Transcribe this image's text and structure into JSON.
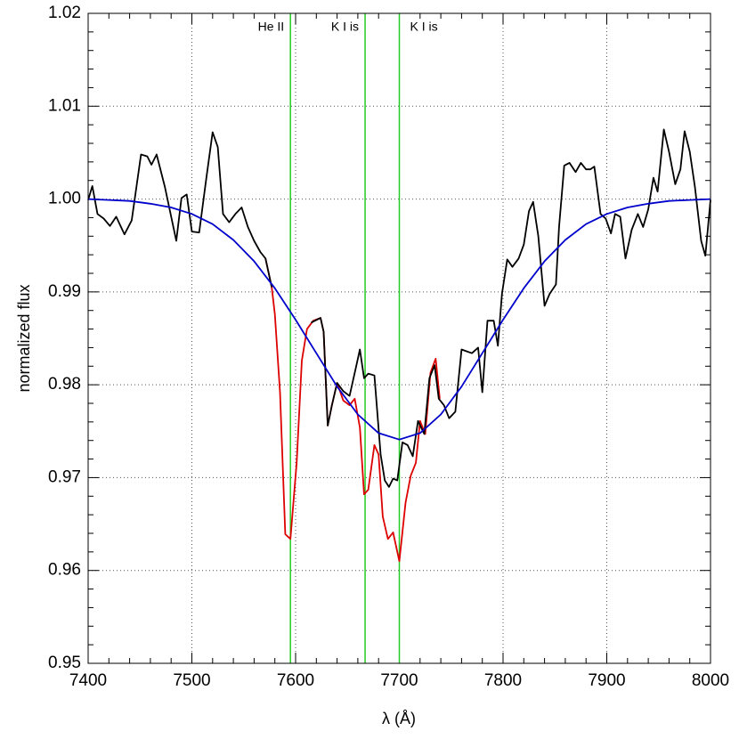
{
  "chart_data": {
    "type": "line",
    "xlabel": "λ (Å)",
    "ylabel": "normalized flux",
    "xlim": [
      7400,
      8000
    ],
    "ylim": [
      0.95,
      1.02
    ],
    "xticks": [
      7400,
      7500,
      7600,
      7700,
      7800,
      7900,
      8000
    ],
    "yticks": [
      0.95,
      0.96,
      0.97,
      0.98,
      0.99,
      {
        "value": 1,
        "label": "1.00"
      },
      1.01,
      1.02
    ],
    "grid": true,
    "series": [
      {
        "color": "#dd0000",
        "x": [
          7571,
          7577,
          7580,
          7585,
          7590,
          7595,
          7601,
          7606,
          7611,
          7617,
          7624,
          7627,
          7631,
          7635,
          7640,
          7646,
          7652,
          7657,
          7662,
          7666,
          7670,
          7676,
          7680,
          7684,
          7689,
          7694,
          7700,
          7706,
          7711,
          7716,
          7720,
          7725,
          7730,
          7735,
          7739
        ],
        "values": [
          0.9936,
          0.9905,
          0.9876,
          0.9792,
          0.9639,
          0.9634,
          0.9716,
          0.9826,
          0.986,
          0.9869,
          0.9872,
          0.9857,
          0.9756,
          0.9778,
          0.9802,
          0.9783,
          0.9778,
          0.9785,
          0.9754,
          0.9682,
          0.9687,
          0.9735,
          0.9725,
          0.9658,
          0.9634,
          0.9641,
          0.961,
          0.9673,
          0.9702,
          0.9716,
          0.9761,
          0.9747,
          0.9813,
          0.9828,
          0.9785
        ]
      },
      {
        "color": "#000000",
        "x": [
          7400,
          7404,
          7409,
          7415,
          7421,
          7427,
          7435,
          7442,
          7451,
          7457,
          7461,
          7466,
          7474,
          7485,
          7490,
          7495,
          7500,
          7507,
          7514,
          7520,
          7525,
          7530,
          7536,
          7542,
          7548,
          7554,
          7560,
          7566,
          7571,
          7577,
          7583,
          7610,
          7615,
          7624,
          7627,
          7631,
          7635,
          7640,
          7646,
          7652,
          7658,
          7662,
          7666,
          7670,
          7676,
          7682,
          7686,
          7690,
          7694,
          7698,
          7703,
          7708,
          7713,
          7718,
          7724,
          7729,
          7734,
          7738,
          7743,
          7748,
          7754,
          7760,
          7765,
          7770,
          7776,
          7780,
          7785,
          7791,
          7795,
          7799,
          7804,
          7809,
          7815,
          7820,
          7825,
          7829,
          7834,
          7840,
          7845,
          7851,
          7854,
          7859,
          7864,
          7870,
          7875,
          7880,
          7884,
          7888,
          7894,
          7899,
          7904,
          7908,
          7913,
          7918,
          7924,
          7930,
          7935,
          7940,
          7945,
          7949,
          7955,
          7960,
          7966,
          7971,
          7975,
          7980,
          7985,
          7991,
          7995,
          8000
        ],
        "values": [
          0.9999,
          1.0014,
          0.9984,
          0.9979,
          0.9971,
          0.9981,
          0.9962,
          0.9977,
          1.0048,
          1.0046,
          1.0037,
          1.0048,
          1.0013,
          0.9955,
          1.0001,
          1.0005,
          0.9965,
          0.9964,
          1.0023,
          1.0072,
          1.0056,
          0.9984,
          0.9975,
          0.9984,
          0.9991,
          0.997,
          0.9955,
          0.9943,
          0.9936,
          0.9905,
          null,
          null,
          0.9867,
          0.9872,
          0.9857,
          0.9756,
          0.9778,
          0.9802,
          0.9793,
          0.9788,
          0.9818,
          0.9838,
          0.9807,
          0.9812,
          0.981,
          0.9725,
          0.9697,
          0.969,
          0.9699,
          0.9697,
          0.9738,
          0.9735,
          0.9723,
          0.9761,
          0.9747,
          0.9807,
          0.9821,
          0.9785,
          0.9778,
          0.9764,
          0.9771,
          0.9838,
          0.9836,
          0.9834,
          0.984,
          0.9792,
          0.9869,
          0.9869,
          0.9842,
          0.9898,
          0.9935,
          0.9927,
          0.9936,
          0.9951,
          0.9987,
          0.9997,
          0.996,
          0.9885,
          0.9898,
          0.9908,
          0.997,
          1.0036,
          1.0039,
          1.0029,
          1.0039,
          1.0032,
          1.0032,
          1.0035,
          0.9984,
          0.9979,
          0.9963,
          0.9984,
          0.9981,
          0.9936,
          0.9967,
          0.9984,
          0.997,
          0.9989,
          1.0023,
          1.0008,
          1.0075,
          1.0051,
          1.0016,
          1.0032,
          1.0073,
          1.0051,
          1.0013,
          0.9955,
          0.9939,
          0.9999
        ]
      },
      {
        "color": "#0000cc",
        "x": [
          7400,
          7420,
          7440,
          7460,
          7480,
          7500,
          7520,
          7540,
          7560,
          7580,
          7600,
          7620,
          7640,
          7660,
          7680,
          7700,
          7720,
          7740,
          7760,
          7780,
          7800,
          7820,
          7840,
          7860,
          7880,
          7900,
          7920,
          7940,
          7960,
          7980,
          8000
        ],
        "values": [
          1.0,
          0.9999,
          0.9998,
          0.9995,
          0.9991,
          0.9984,
          0.9973,
          0.9956,
          0.9933,
          0.9904,
          0.987,
          0.9834,
          0.9798,
          0.9768,
          0.9748,
          0.9741,
          0.9748,
          0.9768,
          0.9798,
          0.9834,
          0.987,
          0.9904,
          0.9933,
          0.9956,
          0.9973,
          0.9984,
          0.9991,
          0.9995,
          0.9998,
          0.9999,
          1.0
        ]
      }
    ],
    "lines": {
      "color": "#22cc22",
      "x": [
        7595,
        7667,
        7700
      ]
    },
    "annotations": [
      {
        "text": "He II",
        "x": 7595,
        "side": "left"
      },
      {
        "text": "K I is",
        "x": 7667,
        "side": "left"
      },
      {
        "text": "K I is",
        "x": 7700,
        "side": "right"
      }
    ]
  }
}
